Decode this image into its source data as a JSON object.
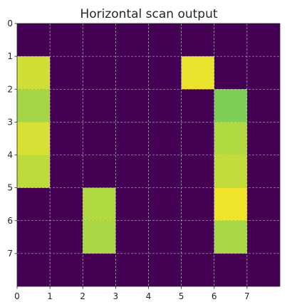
{
  "chart_data": {
    "type": "heatmap",
    "title": "Horizontal scan output",
    "xlabel": "",
    "ylabel": "",
    "x_ticks": [
      0,
      1,
      2,
      3,
      4,
      5,
      6,
      7
    ],
    "y_ticks": [
      0,
      1,
      2,
      3,
      4,
      5,
      6,
      7
    ],
    "xlim": [
      0,
      8
    ],
    "ylim": [
      8,
      0
    ],
    "grid": true,
    "colormap": "viridis",
    "background_value": 0,
    "cells": [
      {
        "row": 1,
        "col": 0,
        "value": 0.93
      },
      {
        "row": 2,
        "col": 0,
        "value": 0.86
      },
      {
        "row": 3,
        "col": 0,
        "value": 0.94
      },
      {
        "row": 4,
        "col": 0,
        "value": 0.9
      },
      {
        "row": 1,
        "col": 5,
        "value": 0.97
      },
      {
        "row": 2,
        "col": 6,
        "value": 0.8
      },
      {
        "row": 3,
        "col": 6,
        "value": 0.88
      },
      {
        "row": 4,
        "col": 6,
        "value": 0.91
      },
      {
        "row": 5,
        "col": 6,
        "value": 0.98
      },
      {
        "row": 6,
        "col": 6,
        "value": 0.87
      },
      {
        "row": 5,
        "col": 2,
        "value": 0.88
      },
      {
        "row": 6,
        "col": 2,
        "value": 0.87
      }
    ]
  }
}
